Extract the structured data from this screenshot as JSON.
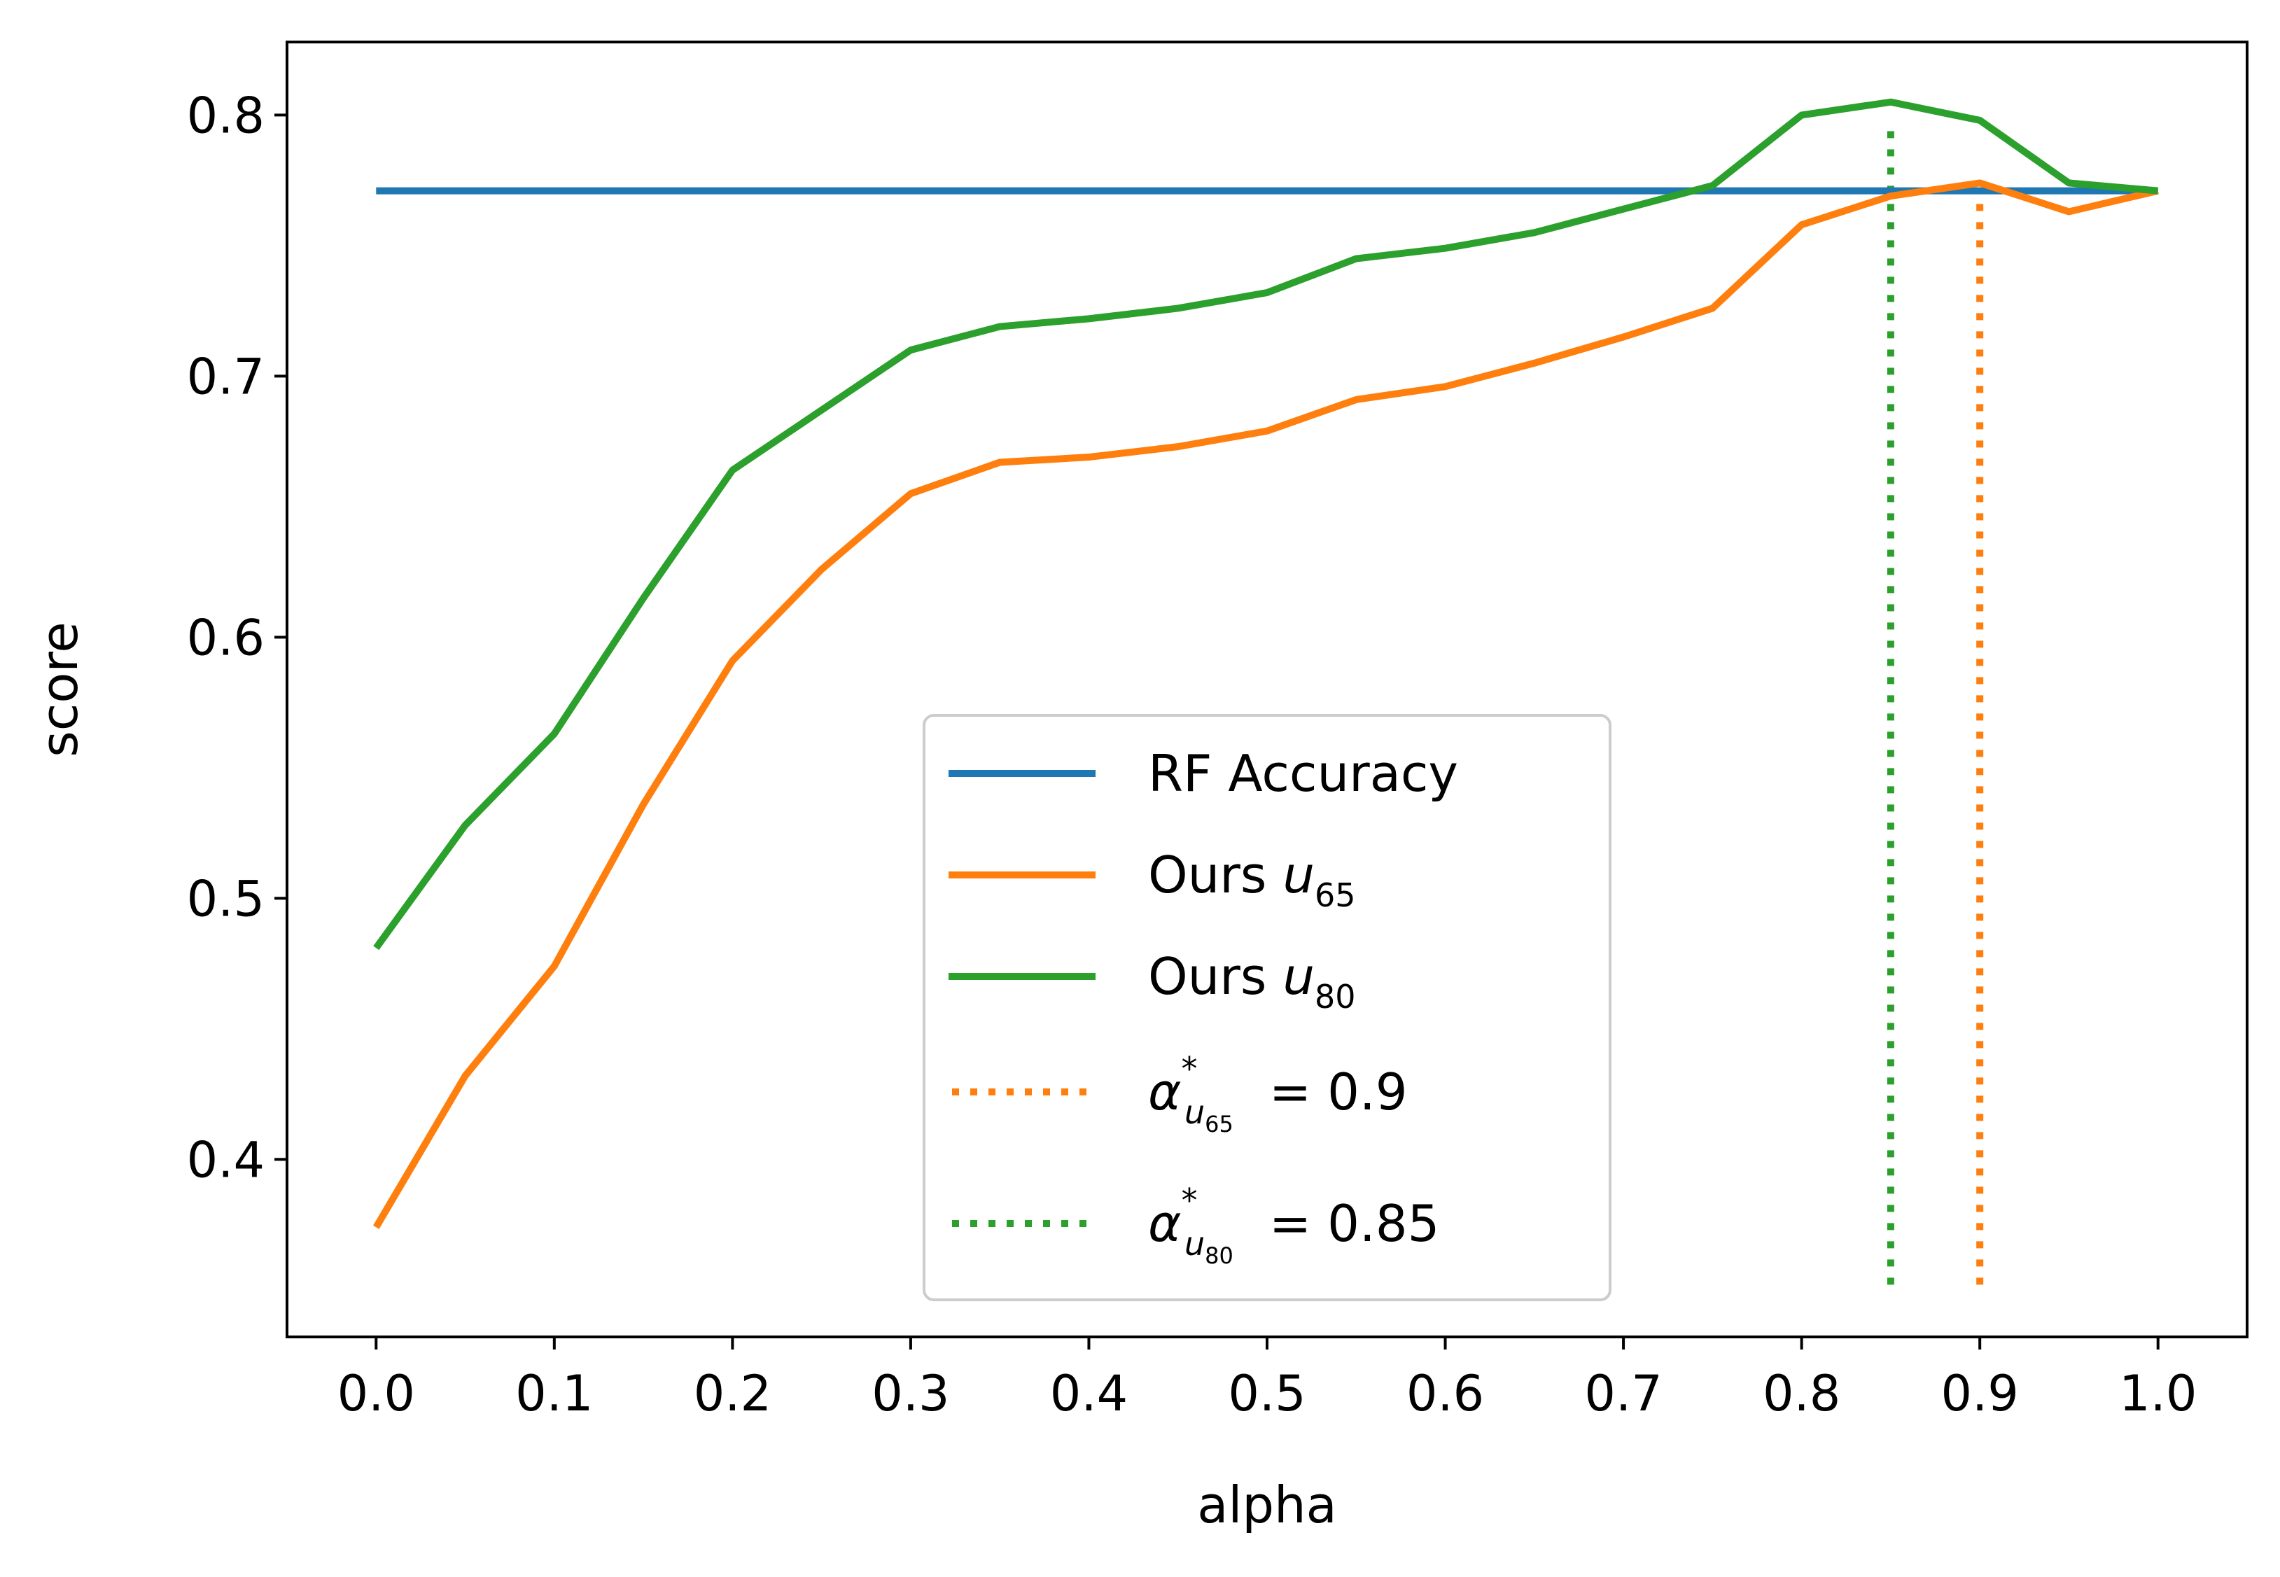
{
  "chart_data": {
    "type": "line",
    "xlabel": "alpha",
    "ylabel": "score",
    "xlim": [
      -0.05,
      1.05
    ],
    "ylim": [
      0.332,
      0.828
    ],
    "xticks": [
      0.0,
      0.1,
      0.2,
      0.3,
      0.4,
      0.5,
      0.6,
      0.7,
      0.8,
      0.9,
      1.0
    ],
    "xtick_labels": [
      "0.0",
      "0.1",
      "0.2",
      "0.3",
      "0.4",
      "0.5",
      "0.6",
      "0.7",
      "0.8",
      "0.9",
      "1.0"
    ],
    "yticks": [
      0.4,
      0.5,
      0.6,
      0.7,
      0.8
    ],
    "ytick_labels": [
      "0.4",
      "0.5",
      "0.6",
      "0.7",
      "0.8"
    ],
    "grid": false,
    "legend_position": "lower-center",
    "x": [
      0.0,
      0.05,
      0.1,
      0.15,
      0.2,
      0.25,
      0.3,
      0.35,
      0.4,
      0.45,
      0.5,
      0.55,
      0.6,
      0.65,
      0.7,
      0.75,
      0.8,
      0.85,
      0.9,
      0.95,
      1.0
    ],
    "series": [
      {
        "name": "RF Accuracy",
        "color": "#1f77b4",
        "style": "solid",
        "x": [
          0.0,
          1.0
        ],
        "values": [
          0.771,
          0.771
        ]
      },
      {
        "name": "Ours u65",
        "legend_main": "Ours ",
        "legend_var": "u",
        "legend_sub": "65",
        "color": "#ff7f0e",
        "style": "solid",
        "values": [
          0.374,
          0.432,
          0.474,
          0.536,
          0.591,
          0.626,
          0.655,
          0.667,
          0.669,
          0.673,
          0.679,
          0.691,
          0.696,
          0.705,
          0.715,
          0.726,
          0.758,
          0.769,
          0.774,
          0.763,
          0.771
        ]
      },
      {
        "name": "Ours u80",
        "legend_main": "Ours ",
        "legend_var": "u",
        "legend_sub": "80",
        "color": "#2ca02c",
        "style": "solid",
        "values": [
          0.481,
          0.528,
          0.563,
          0.615,
          0.664,
          0.687,
          0.71,
          0.719,
          0.722,
          0.726,
          0.732,
          0.745,
          0.749,
          0.755,
          0.764,
          0.773,
          0.8,
          0.805,
          0.798,
          0.774,
          0.771
        ]
      }
    ],
    "vlines": [
      {
        "name": "alpha*_u65 = 0.9",
        "legend_greek": "α",
        "legend_star": "*",
        "legend_subvar": "u",
        "legend_subsub": "65",
        "legend_value": " = 0.9",
        "x": 0.9,
        "ymin": 0.352,
        "ymax": 0.771,
        "color": "#ff7f0e",
        "style": "dotted"
      },
      {
        "name": "alpha*_u80 = 0.85",
        "legend_greek": "α",
        "legend_star": "*",
        "legend_subvar": "u",
        "legend_subsub": "80",
        "legend_value": " = 0.85",
        "x": 0.85,
        "ymin": 0.352,
        "ymax": 0.797,
        "color": "#2ca02c",
        "style": "dotted"
      }
    ],
    "legend": [
      {
        "label": "RF Accuracy",
        "color": "#1f77b4",
        "style": "solid"
      },
      {
        "label_main": "Ours ",
        "label_var": "u",
        "label_sub": "65",
        "color": "#ff7f0e",
        "style": "solid"
      },
      {
        "label_main": "Ours ",
        "label_var": "u",
        "label_sub": "80",
        "color": "#2ca02c",
        "style": "solid"
      },
      {
        "label_greek": "α",
        "label_star": "*",
        "label_subvar": "u",
        "label_subsub": "65",
        "label_value": " = 0.9",
        "color": "#ff7f0e",
        "style": "dotted"
      },
      {
        "label_greek": "α",
        "label_star": "*",
        "label_subvar": "u",
        "label_subsub": "80",
        "label_value": " = 0.85",
        "color": "#2ca02c",
        "style": "dotted"
      }
    ]
  }
}
